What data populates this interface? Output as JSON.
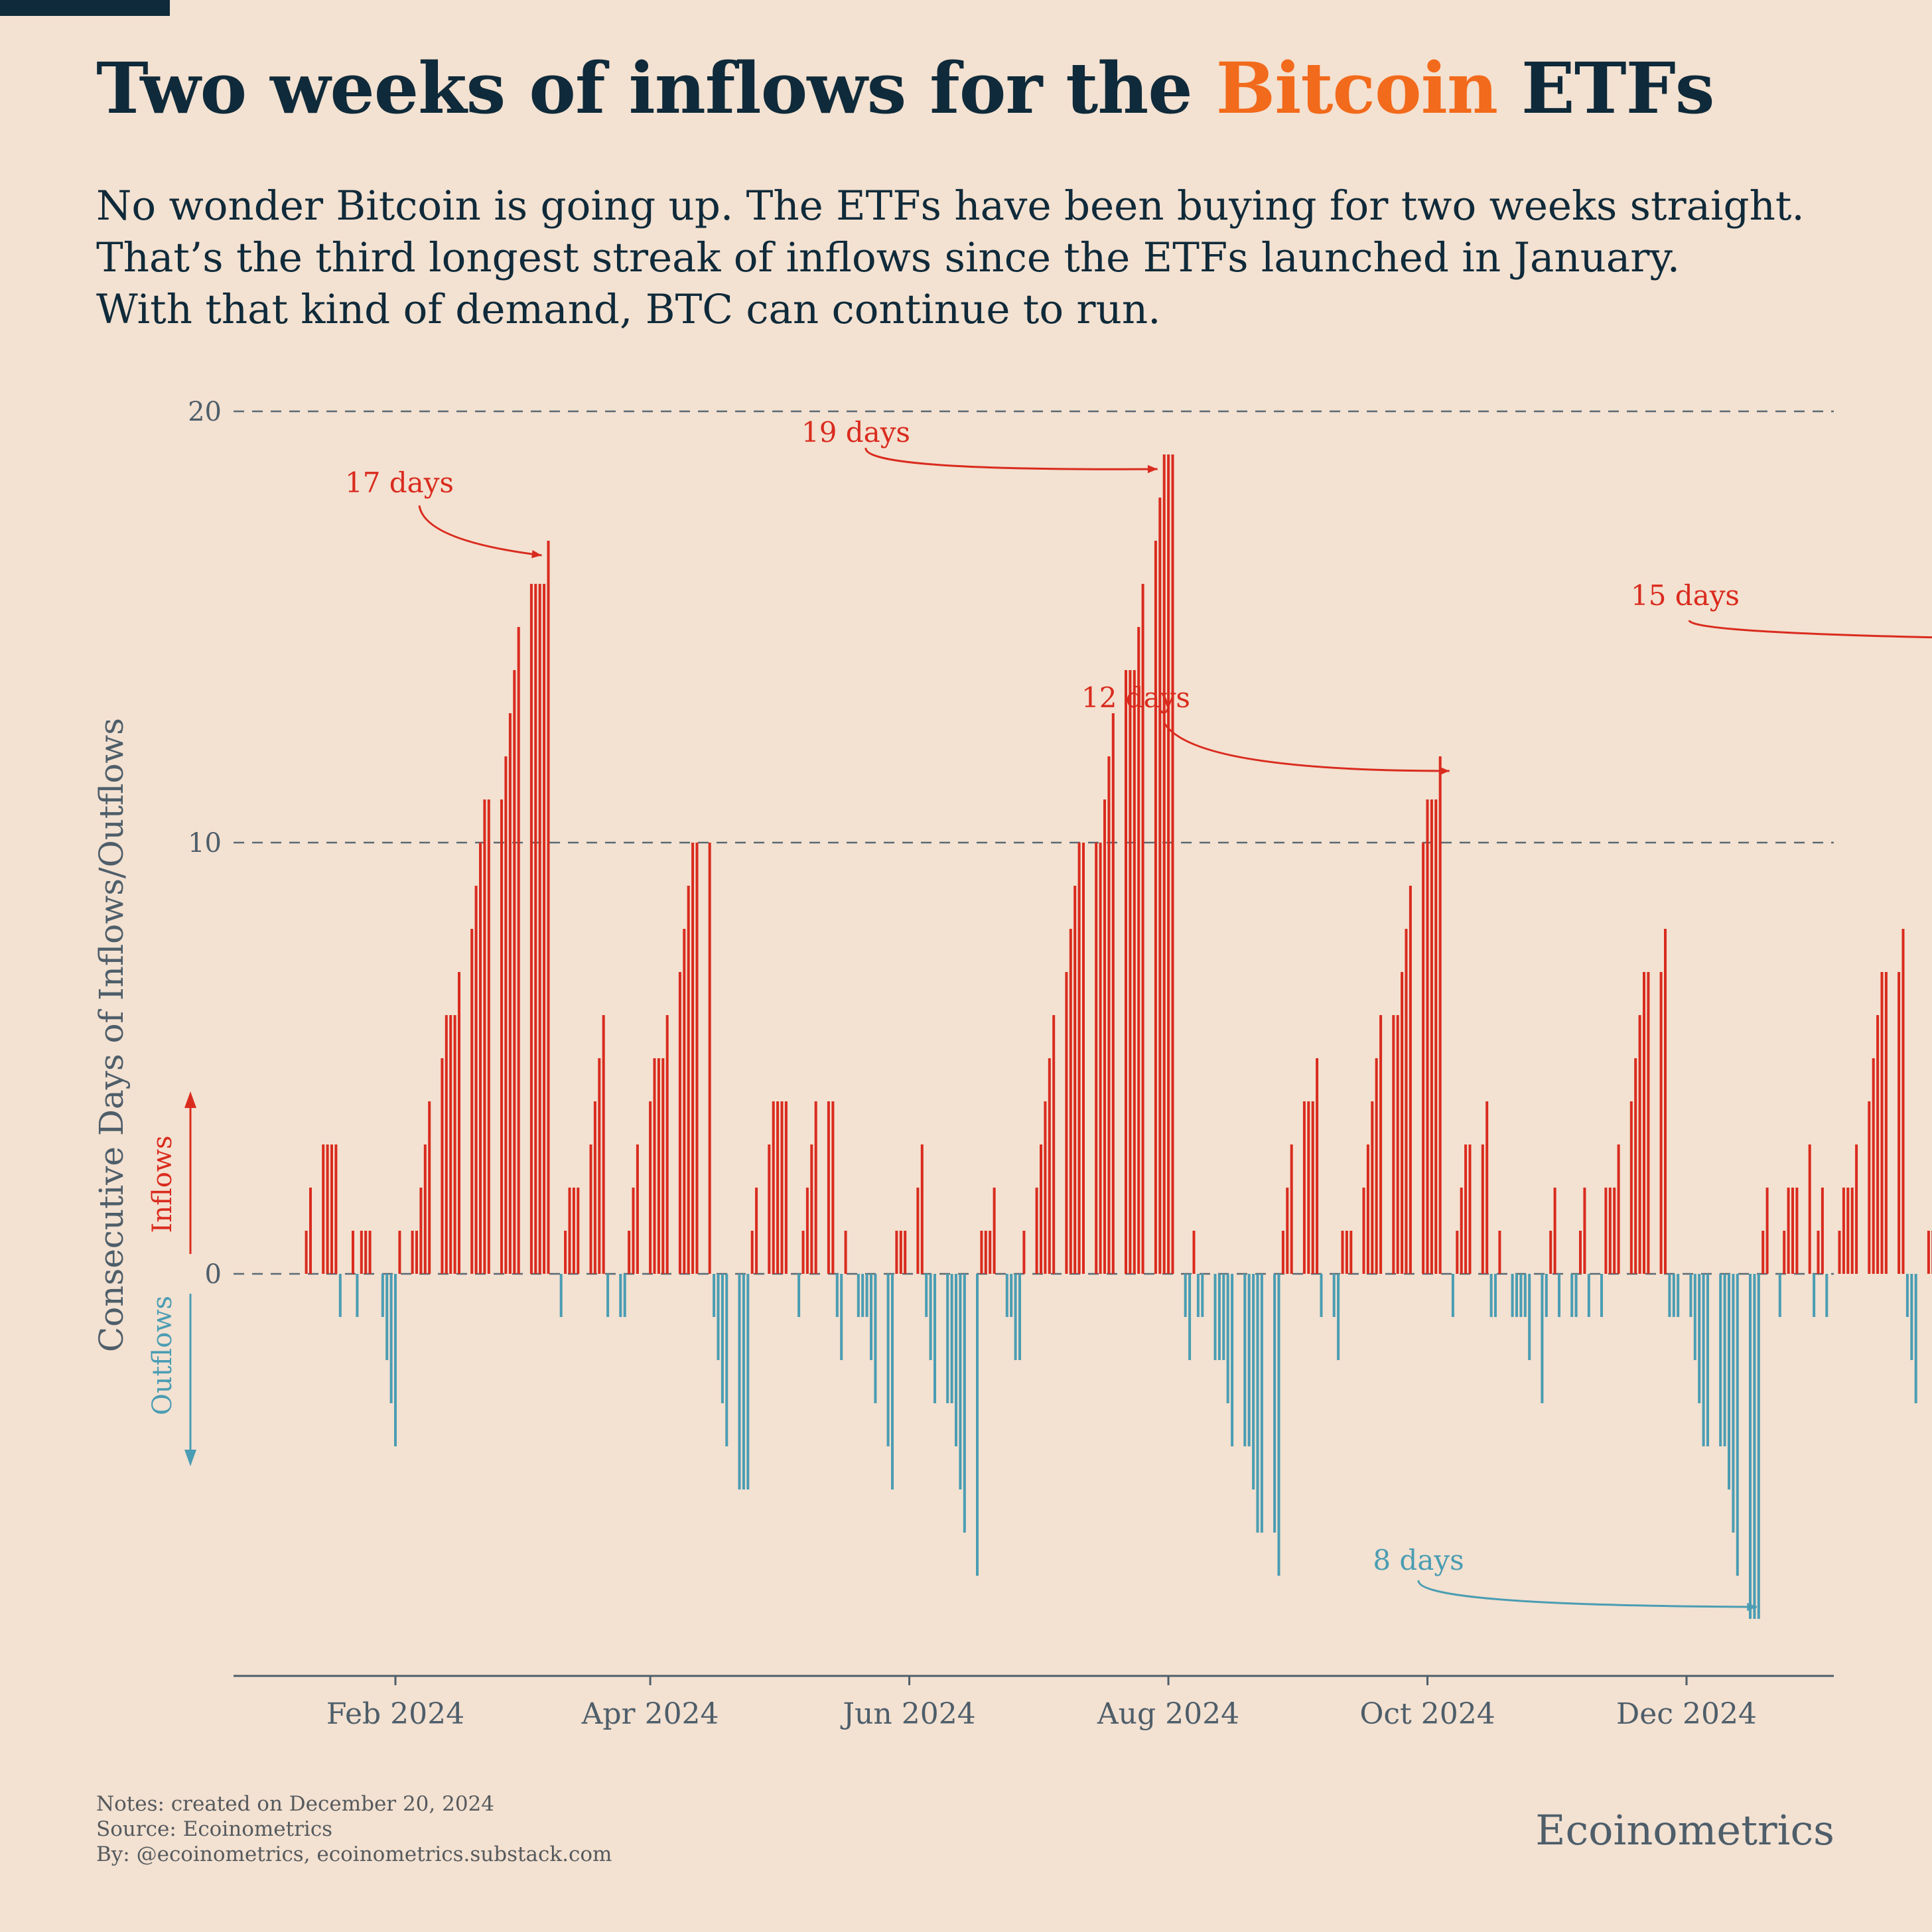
{
  "header": {
    "title_prefix": "Two weeks of inflows for the ",
    "title_accent": "Bitcoin",
    "title_suffix": " ETFs",
    "subtitle_lines": [
      "No wonder Bitcoin is going up. The ETFs have been buying for two weeks straight.",
      "That’s the third longest streak of inflows since the ETFs launched in January.",
      "With that kind of demand, BTC can continue to run."
    ]
  },
  "colors": {
    "background": "#f3e1d1",
    "title": "#0f2a3a",
    "accent": "#f26a1b",
    "inflow": "#d92b1e",
    "outflow": "#4a9db3",
    "axis": "#4e5e6a",
    "grid": "#5a6a74"
  },
  "chart_data": {
    "type": "bar",
    "ylabel": "Consecutive Days of Inflows/Outflows",
    "ylim": [
      -9.5,
      20
    ],
    "yticks": [
      0,
      10,
      20
    ],
    "grid": "horizontal dashed at y ticks",
    "xlim": [
      "2024-01-01",
      "2024-12-31"
    ],
    "xticks": [
      {
        "date": "2024-02-01",
        "label": "Feb 2024"
      },
      {
        "date": "2024-04-01",
        "label": "Apr 2024"
      },
      {
        "date": "2024-06-01",
        "label": "Jun 2024"
      },
      {
        "date": "2024-08-01",
        "label": "Aug 2024"
      },
      {
        "date": "2024-10-01",
        "label": "Oct 2024"
      },
      {
        "date": "2024-12-01",
        "label": "Dec 2024"
      }
    ],
    "first_date": "2024-01-11",
    "values": [
      1,
      2,
      3,
      3,
      3,
      3,
      -1,
      1,
      -1,
      1,
      1,
      1,
      -1,
      -2,
      -3,
      -4,
      1,
      1,
      1,
      2,
      3,
      4,
      5,
      6,
      6,
      6,
      7,
      8,
      9,
      10,
      11,
      11,
      11,
      12,
      13,
      14,
      15,
      16,
      16,
      16,
      16,
      17,
      -1,
      1,
      2,
      2,
      2,
      3,
      4,
      5,
      6,
      -1,
      -1,
      -1,
      1,
      2,
      3,
      4,
      5,
      5,
      5,
      6,
      7,
      8,
      9,
      10,
      10,
      10,
      -1,
      -2,
      -3,
      -4,
      -5,
      -5,
      -5,
      1,
      2,
      3,
      4,
      4,
      4,
      4,
      -1,
      1,
      2,
      3,
      4,
      4,
      4,
      -1,
      -2,
      1,
      -1,
      -1,
      -1,
      -2,
      -3,
      -4,
      -5,
      1,
      1,
      1,
      2,
      3,
      -1,
      -2,
      -3,
      -3,
      -3,
      -4,
      -5,
      -6,
      -7,
      1,
      1,
      1,
      2,
      -1,
      -1,
      -2,
      -2,
      1,
      2,
      3,
      4,
      5,
      6,
      7,
      8,
      9,
      10,
      10,
      10,
      10,
      11,
      12,
      13,
      14,
      14,
      14,
      15,
      16,
      17,
      18,
      19,
      19,
      19,
      -1,
      -2,
      1,
      -1,
      -1,
      -2,
      -2,
      -2,
      -3,
      -4,
      -4,
      -4,
      -5,
      -6,
      -6,
      -6,
      -7,
      1,
      2,
      3,
      4,
      4,
      4,
      5,
      -1,
      -1,
      -2,
      1,
      1,
      1,
      2,
      3,
      4,
      5,
      6,
      6,
      6,
      7,
      8,
      9,
      10,
      11,
      11,
      11,
      12,
      -1,
      1,
      2,
      3,
      3,
      3,
      4,
      -1,
      -1,
      1,
      -1,
      -1,
      -1,
      -1,
      -2,
      -3,
      -1,
      1,
      2,
      -1,
      -1,
      -1,
      1,
      2,
      -1,
      -1,
      2,
      2,
      2,
      3,
      4,
      5,
      6,
      7,
      7,
      7,
      8,
      -1,
      -1,
      -1,
      -1,
      -2,
      -3,
      -4,
      -4,
      -4,
      -4,
      -5,
      -6,
      -7,
      -8,
      -8,
      -8,
      1,
      2,
      -1,
      1,
      2,
      2,
      2,
      3,
      -1,
      1,
      2,
      -1,
      1,
      2,
      2,
      2,
      3,
      4,
      5,
      6,
      7,
      7,
      7,
      8,
      -1,
      -2,
      -3,
      1,
      1,
      1,
      2,
      -1,
      -2,
      -3,
      1,
      1,
      1,
      2,
      3,
      4,
      5,
      6,
      6,
      6,
      7,
      -1,
      1,
      2,
      3,
      3,
      3,
      4,
      5,
      6,
      7,
      -1,
      -1,
      -1,
      -2,
      -3,
      1,
      2,
      3,
      3,
      3,
      4,
      5,
      6,
      5,
      5,
      5,
      -1,
      -2,
      -2,
      -2,
      1,
      2,
      3,
      4,
      5,
      5,
      5,
      -1,
      -2,
      1,
      1,
      2,
      2,
      2,
      3,
      4,
      5,
      6,
      7,
      7,
      7,
      8,
      9,
      10,
      11,
      12,
      12,
      12,
      13,
      14,
      14,
      15
    ],
    "annotations": [
      {
        "text": "17 days",
        "series": "inflows"
      },
      {
        "text": "19 days",
        "series": "inflows"
      },
      {
        "text": "12 days",
        "series": "inflows"
      },
      {
        "text": "15 days",
        "series": "inflows"
      },
      {
        "text": "8 days",
        "series": "outflows"
      }
    ],
    "direction_labels": {
      "inflows": "Inflows",
      "outflows": "Outflows"
    }
  },
  "footer": {
    "notes": "Notes: created on December 20, 2024",
    "source": "Source: Ecoinometrics",
    "by": "By: @ecoinometrics, ecoinometrics.substack.com",
    "brand": "Ecoinometrics"
  }
}
